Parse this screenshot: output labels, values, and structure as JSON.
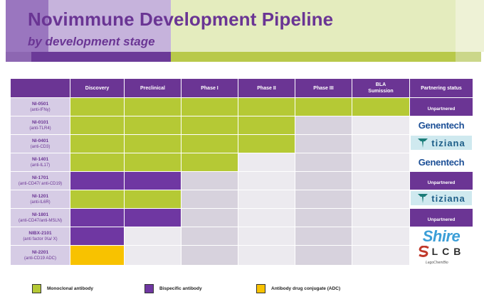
{
  "header": {
    "title": "Novimmune Development Pipeline",
    "subtitle": "by development stage"
  },
  "table": {
    "columns": [
      "",
      "Discovery",
      "Preclinical",
      "Phase I",
      "Phase II",
      "Phase III",
      "BLA\nSumission",
      "Partnering status"
    ],
    "rows": [
      {
        "code": "NI-0501",
        "target": "(anti-IFNγ)",
        "stages_reached": 6,
        "modality": "mono",
        "partner": "Unpartnered"
      },
      {
        "code": "NI-0101",
        "target": "(anti-TLR4)",
        "stages_reached": 4,
        "modality": "mono",
        "partner": "Genentech"
      },
      {
        "code": "NI-0401",
        "target": "(anti-CD3)",
        "stages_reached": 4,
        "modality": "mono",
        "partner": "tiziana"
      },
      {
        "code": "NI-1401",
        "target": "(anti-IL17)",
        "stages_reached": 3,
        "modality": "mono",
        "partner": "Genentech"
      },
      {
        "code": "NI-1701",
        "target": "(anti-CD47/ anti-CD19)",
        "stages_reached": 2,
        "modality": "bisp",
        "partner": "Unpartnered"
      },
      {
        "code": "NI-1201",
        "target": "(anti-IL6R)",
        "stages_reached": 2,
        "modality": "mono",
        "partner": "tiziana"
      },
      {
        "code": "NI-1801",
        "target": "(anti-CD47/anti-MSLN)",
        "stages_reached": 2,
        "modality": "bisp",
        "partner": "Unpartnered"
      },
      {
        "code": "NIBX-2101",
        "target": "(anti factor IXa/ X)",
        "stages_reached": 1,
        "modality": "bisp",
        "partner": "Shire"
      },
      {
        "code": "NI-2201",
        "target": "(anti-CD19 ADC)",
        "stages_reached": 1,
        "modality": "adc",
        "partner": "LCB"
      }
    ]
  },
  "logos": {
    "genentech": "Genentech",
    "tiziana": "tiziana",
    "shire": "Shire",
    "lcb": "LCB",
    "lcb_sub": "LegoChemBio"
  },
  "legend": [
    {
      "label": "Monoclonal antibody",
      "color": "#b5c935"
    },
    {
      "label": "Bispecific antibody",
      "color": "#6f37a2"
    },
    {
      "label": "Antibody drug conjugate (ADC)",
      "color": "#f8c200"
    }
  ],
  "colors": {
    "brand_purple": "#6b3594",
    "mono": "#b5c935",
    "bisp": "#6f37a2",
    "adc": "#f8c200"
  }
}
